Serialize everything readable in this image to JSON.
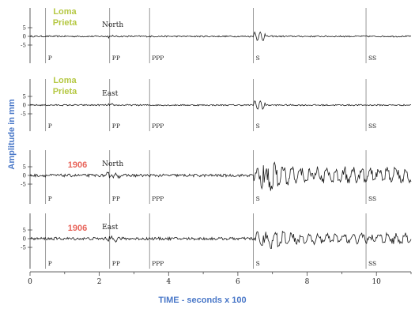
{
  "chart_data": {
    "type": "line",
    "xlabel": "TIME - seconds x 100",
    "ylabel": "Amplitude in mm",
    "xlim": [
      0,
      11
    ],
    "x_ticks": [
      "0",
      "2",
      "4",
      "6",
      "8",
      "10"
    ],
    "y_ticks": [
      "5",
      "0",
      "-5"
    ],
    "phases": [
      {
        "label": "P",
        "x": 0.45
      },
      {
        "label": "PP",
        "x": 2.3
      },
      {
        "label": "PPP",
        "x": 3.45
      },
      {
        "label": "S",
        "x": 6.45
      },
      {
        "label": "SS",
        "x": 9.7
      }
    ],
    "panels": [
      {
        "event": "Loma Prieta",
        "event_line1": "Loma",
        "event_line2": "Prieta",
        "component": "North",
        "color": "#b5c842",
        "peak_amplitude": 2
      },
      {
        "event": "Loma Prieta",
        "event_line1": "Loma",
        "event_line2": "Prieta",
        "component": "East",
        "color": "#b5c842",
        "peak_amplitude": 2
      },
      {
        "event": "1906",
        "event_line1": "1906",
        "event_line2": "",
        "component": "North",
        "color": "#e8645a",
        "peak_amplitude": 9
      },
      {
        "event": "1906",
        "event_line1": "1906",
        "event_line2": "",
        "component": "East",
        "color": "#e8645a",
        "peak_amplitude": 6
      }
    ]
  },
  "colors": {
    "ylabel": "#4a78c8",
    "xlabel": "#4a78c8",
    "trace": "#1a1a1a"
  }
}
